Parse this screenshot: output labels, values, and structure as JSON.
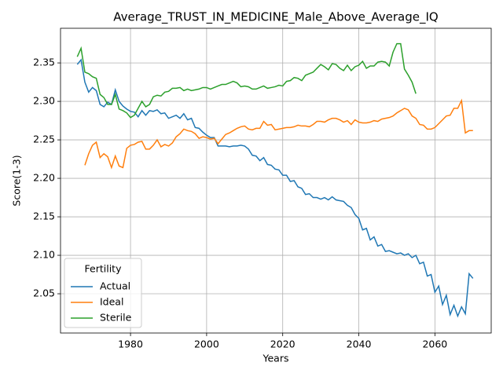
{
  "chart_data": {
    "type": "line",
    "title": "Average_TRUST_IN_MEDICINE_Male_Above_Average_IQ",
    "x_label": "Years",
    "y_label": "Score(1-3)",
    "legend_title": "Fertility",
    "legend_loc": "lower left",
    "grid": true,
    "xlim": [
      1961.6,
      2074.8
    ],
    "ylim": [
      1.999,
      2.395
    ],
    "xticks": [
      1980,
      2000,
      2020,
      2040,
      2060
    ],
    "yticks": [
      2.05,
      {
        "value": 2.1,
        "label": "2.10"
      },
      2.15,
      {
        "value": 2.2,
        "label": "2.20"
      },
      2.25,
      {
        "value": 2.3,
        "label": "2.30"
      },
      2.35
    ],
    "x": [
      1966,
      1967,
      1968,
      1969,
      1970,
      1971,
      1972,
      1973,
      1974,
      1975,
      1976,
      1977,
      1978,
      1979,
      1980,
      1981,
      1982,
      1983,
      1984,
      1985,
      1986,
      1987,
      1988,
      1989,
      1990,
      1991,
      1992,
      1993,
      1994,
      1995,
      1996,
      1997,
      1998,
      1999,
      2000,
      2001,
      2002,
      2003,
      2004,
      2005,
      2006,
      2007,
      2008,
      2009,
      2010,
      2011,
      2012,
      2013,
      2014,
      2015,
      2016,
      2017,
      2018,
      2019,
      2020,
      2021,
      2022,
      2023,
      2024,
      2025,
      2026,
      2027,
      2028,
      2029,
      2030,
      2031,
      2032,
      2033,
      2034,
      2035,
      2036,
      2037,
      2038,
      2039,
      2040,
      2041,
      2042,
      2043,
      2044,
      2045,
      2046,
      2047,
      2048,
      2049,
      2050,
      2051,
      2052,
      2053,
      2054,
      2055,
      2056,
      2057,
      2058,
      2059,
      2060,
      2061,
      2062,
      2063,
      2064,
      2065,
      2066,
      2067,
      2068,
      2069,
      2070
    ],
    "series": [
      {
        "name": "Actual",
        "color": "#1f77b4",
        "values": [
          2.348,
          2.354,
          2.325,
          2.312,
          2.318,
          2.314,
          2.296,
          2.293,
          2.299,
          2.296,
          2.315,
          2.3,
          2.294,
          2.29,
          2.287,
          2.286,
          2.28,
          2.288,
          2.282,
          2.288,
          2.287,
          2.289,
          2.284,
          2.285,
          2.278,
          2.28,
          2.282,
          2.278,
          2.284,
          2.276,
          2.278,
          2.266,
          2.265,
          2.26,
          2.256,
          2.253,
          2.253,
          2.242,
          2.242,
          2.242,
          2.241,
          2.242,
          2.242,
          2.243,
          2.242,
          2.238,
          2.23,
          2.229,
          2.223,
          2.227,
          2.218,
          2.217,
          2.212,
          2.211,
          2.204,
          2.204,
          2.196,
          2.197,
          2.189,
          2.187,
          2.179,
          2.18,
          2.175,
          2.175,
          2.173,
          2.175,
          2.172,
          2.176,
          2.172,
          2.171,
          2.17,
          2.165,
          2.162,
          2.153,
          2.148,
          2.133,
          2.135,
          2.12,
          2.124,
          2.112,
          2.114,
          2.105,
          2.106,
          2.104,
          2.102,
          2.103,
          2.1,
          2.102,
          2.097,
          2.1,
          2.089,
          2.091,
          2.073,
          2.075,
          2.052,
          2.06,
          2.036,
          2.048,
          2.023,
          2.035,
          2.021,
          2.033,
          2.024,
          2.076,
          2.07
        ]
      },
      {
        "name": "Ideal",
        "color": "#ff7f0e",
        "values": [
          null,
          null,
          2.217,
          2.232,
          2.243,
          2.247,
          2.227,
          2.232,
          2.228,
          2.214,
          2.229,
          2.216,
          2.214,
          2.239,
          2.243,
          2.244,
          2.247,
          2.248,
          2.238,
          2.238,
          2.243,
          2.25,
          2.241,
          2.244,
          2.242,
          2.246,
          2.254,
          2.258,
          2.264,
          2.262,
          2.261,
          2.258,
          2.252,
          2.254,
          2.253,
          2.251,
          2.252,
          2.245,
          2.251,
          2.257,
          2.259,
          2.262,
          2.265,
          2.267,
          2.268,
          2.264,
          2.263,
          2.265,
          2.265,
          2.274,
          2.269,
          2.27,
          2.263,
          2.264,
          2.265,
          2.266,
          2.266,
          2.267,
          2.269,
          2.268,
          2.268,
          2.267,
          2.27,
          2.274,
          2.274,
          2.273,
          2.276,
          2.278,
          2.278,
          2.276,
          2.273,
          2.275,
          2.27,
          2.276,
          2.273,
          2.272,
          2.272,
          2.273,
          2.275,
          2.274,
          2.277,
          2.278,
          2.279,
          2.281,
          2.285,
          2.288,
          2.291,
          2.289,
          2.281,
          2.278,
          2.27,
          2.269,
          2.264,
          2.264,
          2.266,
          2.271,
          2.276,
          2.281,
          2.282,
          2.291,
          2.291,
          2.301,
          2.259,
          2.262,
          2.262
        ]
      },
      {
        "name": "Sterile",
        "color": "#2ca02c",
        "values": [
          2.358,
          2.369,
          2.338,
          2.336,
          2.332,
          2.33,
          2.309,
          2.305,
          2.296,
          2.296,
          2.309,
          2.29,
          2.288,
          2.285,
          2.279,
          2.282,
          2.291,
          2.3,
          2.293,
          2.296,
          2.306,
          2.308,
          2.307,
          2.312,
          2.313,
          2.317,
          2.317,
          2.318,
          2.314,
          2.316,
          2.314,
          2.315,
          2.316,
          2.318,
          2.318,
          2.316,
          2.318,
          2.32,
          2.322,
          2.322,
          2.324,
          2.326,
          2.324,
          2.319,
          2.32,
          2.319,
          2.316,
          2.316,
          2.318,
          2.32,
          2.317,
          2.318,
          2.319,
          2.321,
          2.32,
          2.326,
          2.327,
          2.331,
          2.33,
          2.327,
          2.334,
          2.336,
          2.338,
          2.343,
          2.348,
          2.345,
          2.341,
          2.349,
          2.348,
          2.343,
          2.34,
          2.347,
          2.34,
          2.345,
          2.347,
          2.352,
          2.343,
          2.346,
          2.346,
          2.351,
          2.352,
          2.351,
          2.346,
          2.364,
          2.375,
          2.375,
          2.342,
          2.334,
          2.325,
          2.31,
          null,
          null,
          null,
          null,
          null,
          null,
          null,
          null,
          null,
          null,
          null,
          null,
          null,
          null,
          null
        ]
      }
    ]
  }
}
